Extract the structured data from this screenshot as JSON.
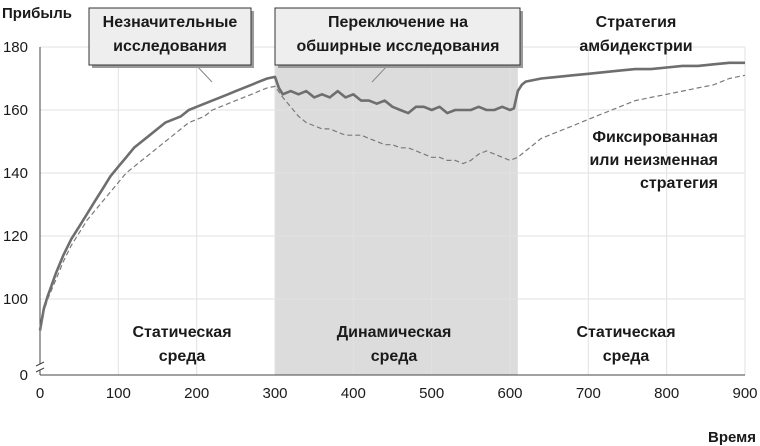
{
  "chart_data": {
    "type": "line",
    "ylabel": "Прибыль",
    "xlabel": "Время",
    "xlim": [
      0,
      900
    ],
    "ylim": [
      80,
      180
    ],
    "y_axis_break": true,
    "y_break_zero_label": "0",
    "xticks": [
      0,
      100,
      200,
      300,
      400,
      500,
      600,
      700,
      800,
      900
    ],
    "yticks": [
      100,
      120,
      140,
      160,
      180
    ],
    "shaded_region": {
      "x": [
        300,
        610
      ],
      "color": "#dcdcdc"
    },
    "series": [
      {
        "name": "Стратегия амбидекстрии",
        "style": "solid",
        "color": "#6e6e6e",
        "x": [
          0,
          5,
          10,
          20,
          30,
          40,
          50,
          60,
          70,
          80,
          90,
          100,
          110,
          120,
          130,
          140,
          150,
          160,
          170,
          180,
          190,
          200,
          210,
          220,
          230,
          240,
          250,
          260,
          270,
          280,
          290,
          300,
          305,
          310,
          320,
          330,
          340,
          350,
          360,
          370,
          380,
          390,
          400,
          410,
          420,
          430,
          440,
          450,
          460,
          470,
          480,
          490,
          500,
          510,
          520,
          530,
          540,
          550,
          560,
          570,
          580,
          590,
          600,
          605,
          610,
          615,
          620,
          640,
          660,
          680,
          700,
          720,
          740,
          760,
          780,
          800,
          820,
          840,
          860,
          880,
          900
        ],
        "y": [
          90,
          97,
          101,
          108,
          114,
          119,
          123,
          127,
          131,
          135,
          139,
          142,
          145,
          148,
          150,
          152,
          154,
          156,
          157,
          158,
          160,
          161,
          162,
          163,
          164,
          165,
          166,
          167,
          168,
          169,
          170,
          170.5,
          167,
          165,
          166,
          165,
          166,
          164,
          165,
          164,
          166,
          164,
          165,
          163,
          163,
          162,
          163,
          161,
          160,
          159,
          161,
          161,
          160,
          161,
          159,
          160,
          160,
          160,
          161,
          160,
          160,
          161,
          160,
          160.5,
          166,
          168,
          169,
          170,
          170.5,
          171,
          171.5,
          172,
          172.5,
          173,
          173,
          173.5,
          174,
          174,
          174.5,
          175,
          175
        ]
      },
      {
        "name": "Фиксированная или неизменная стратегия",
        "style": "dashed",
        "color": "#7a7a7a",
        "x": [
          0,
          5,
          10,
          20,
          30,
          40,
          50,
          60,
          70,
          80,
          90,
          100,
          110,
          120,
          130,
          140,
          150,
          160,
          170,
          180,
          190,
          200,
          210,
          220,
          230,
          240,
          250,
          260,
          270,
          280,
          290,
          300,
          310,
          320,
          330,
          340,
          350,
          360,
          370,
          380,
          390,
          400,
          410,
          420,
          430,
          440,
          450,
          460,
          470,
          480,
          490,
          500,
          510,
          520,
          530,
          540,
          550,
          560,
          570,
          580,
          590,
          600,
          610,
          620,
          640,
          660,
          680,
          700,
          720,
          740,
          760,
          780,
          800,
          820,
          840,
          860,
          880,
          900
        ],
        "y": [
          90,
          96,
          100,
          106,
          112,
          117,
          121,
          125,
          128,
          131,
          134,
          137,
          140,
          142,
          144,
          146,
          148,
          150,
          152,
          154,
          156,
          157,
          158,
          160,
          161,
          162,
          163,
          164,
          165,
          166,
          167,
          167.5,
          164,
          161,
          158,
          156,
          155,
          154,
          154,
          153,
          152,
          152,
          152,
          151,
          150,
          149,
          149,
          148,
          148,
          147,
          146,
          145,
          145,
          144,
          144,
          143,
          144,
          146,
          147,
          146,
          145,
          144,
          145,
          147,
          151,
          153,
          155,
          157,
          159,
          161,
          163,
          164,
          165,
          166,
          167,
          168,
          170,
          171
        ]
      }
    ],
    "annotations": [
      {
        "id": "minor",
        "lines": [
          "Незначительные",
          "исследования"
        ],
        "boxed": true
      },
      {
        "id": "switch",
        "lines": [
          "Переключение на",
          "обширные исследования"
        ],
        "boxed": true
      },
      {
        "id": "ambi",
        "lines": [
          "Стратегия",
          "амбидекстрии"
        ]
      },
      {
        "id": "fixed",
        "lines": [
          "Фиксированная",
          "или неизменная",
          "стратегия"
        ]
      },
      {
        "id": "static1",
        "lines": [
          "Статическая",
          "среда"
        ]
      },
      {
        "id": "dynamic",
        "lines": [
          "Динамическая",
          "среда"
        ]
      },
      {
        "id": "static2",
        "lines": [
          "Статическая",
          "среда"
        ]
      }
    ]
  }
}
